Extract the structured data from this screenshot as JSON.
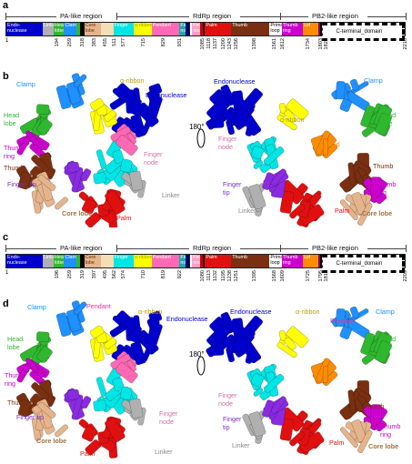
{
  "panels": {
    "a": {
      "label": "a",
      "regions": [
        "PA-like region",
        "RdRp region",
        "PB2-like region"
      ],
      "segments": [
        {
          "name": "Endo-\nnuclease",
          "color": "#0000cc",
          "w": 9.0,
          "txt": "#ffffff"
        },
        {
          "name": "Linker",
          "color": "#b0b0b0",
          "w": 2.7,
          "txt": "#ffffff"
        },
        {
          "name": "Head\nlobe",
          "color": "#2fb82f",
          "w": 2.6,
          "txt": "#ffffff"
        },
        {
          "name": "Clamp",
          "color": "#1e90ff",
          "w": 3.0,
          "txt": "#ffffff"
        },
        {
          "name": "",
          "color": "#2fb82f",
          "w": 1.0,
          "txt": "#ffffff"
        },
        {
          "name": "",
          "color": "#000000",
          "w": 1.0,
          "txt": "#ffffff"
        },
        {
          "name": "Core\nlobe",
          "color": "#e6b48c",
          "w": 4.2,
          "txt": "#5a3200"
        },
        {
          "name": "",
          "color": "#f5deb3",
          "w": 3.0,
          "txt": "#000"
        },
        {
          "name": "Finger",
          "color": "#00e5e5",
          "w": 5.0,
          "txt": "#ffffff"
        },
        {
          "name": "α-ribbon",
          "color": "#ffff00",
          "w": 4.5,
          "txt": "#a0a000"
        },
        {
          "name": "Pendant",
          "color": "#ff69b4",
          "w": 6.9,
          "txt": "#ffffff"
        },
        {
          "name": "Finger\nnode",
          "color": "#20a8a8",
          "w": 1.5,
          "txt": "#ffffff"
        },
        {
          "name": "",
          "color": "#000080",
          "w": 0.9,
          "txt": "#ffffff"
        },
        {
          "name": "",
          "color": "#ffffff",
          "w": 0.5,
          "txt": "#000"
        },
        {
          "name": "Finger\nnode",
          "color": "#ff9ec8",
          "w": 2.0,
          "txt": "#ffffff"
        },
        {
          "name": "",
          "color": "#d00000",
          "w": 0.6,
          "txt": "#ffffff"
        },
        {
          "name": "",
          "color": "#000000",
          "w": 0.6,
          "txt": "#ffffff"
        },
        {
          "name": "Palm",
          "color": "#e01010",
          "w": 6.5,
          "txt": "#ffffff"
        },
        {
          "name": "Thumb",
          "color": "#7a3010",
          "w": 9.5,
          "txt": "#ffffff"
        },
        {
          "name": "Priming\nloop",
          "color": "#ffffff",
          "w": 3.0,
          "txt": "#000000"
        },
        {
          "name": "Thumb\nring",
          "color": "#cc00cc",
          "w": 5.3,
          "txt": "#ffffff"
        },
        {
          "name": "Lid",
          "color": "#ff8c00",
          "w": 3.8,
          "txt": "#ffffff"
        },
        {
          "name": "",
          "color": "#800080",
          "w": 0.5,
          "txt": "#ffffff"
        },
        {
          "name": "",
          "color": "#000000",
          "w": 0.5,
          "txt": "#ffffff"
        },
        {
          "name": "C-terminal_domain",
          "color": "#ffffff",
          "w": 19.5,
          "txt": "#000000"
        }
      ],
      "start": "1",
      "end": "2218",
      "numbers": [
        "194",
        "259",
        "318",
        "383",
        "455",
        "511",
        "577",
        "715",
        "829",
        "931",
        "1085",
        "1118",
        "1137",
        "1200",
        "1243",
        "1256",
        "1398",
        "1561",
        "1612",
        "1734",
        "1803",
        "1821"
      ]
    },
    "c": {
      "label": "c",
      "regions": [
        "PA-like region",
        "RdRp region",
        "PB2-like region"
      ],
      "start": "1",
      "end": "2209",
      "numbers": [
        "196",
        "259",
        "319",
        "397",
        "495",
        "562",
        "574",
        "710",
        "819",
        "922",
        "1080",
        "1113",
        "1132",
        "1195",
        "1238",
        "1251",
        "1395",
        "1568",
        "1609",
        "1725",
        "1795",
        "1815"
      ]
    },
    "b": {
      "label": "b",
      "rotation": "180°",
      "left_labels": [
        "Clamp",
        "Head\nlobe",
        "Thumb\nring",
        "Thumb",
        "Finger_tip",
        "Core lobe",
        "α-ribbon",
        "Endonuclease",
        "Finger\nnode",
        "Linker",
        "Palm"
      ],
      "right_labels": [
        "Endonuclease",
        "Clamp",
        "α-ribbon",
        "Head\nlobe",
        "Finger\nnode",
        "Lid",
        "Thumb",
        "Finger\ntip",
        "Thumb\nring",
        "Linker",
        "Palm",
        "Core lobe"
      ]
    },
    "d": {
      "label": "d",
      "rotation": "180°",
      "left_labels": [
        "Clamp",
        "Pendant",
        "α-ribbon",
        "Endonuclease",
        "Head\nlobe",
        "Thumb\nring",
        "Thumb",
        "Finger tip",
        "Finger\nnode",
        "Core lobe",
        "Palm",
        "Linker"
      ],
      "right_labels": [
        "Endonuclease",
        "α-ribbon",
        "Pendant",
        "Clamp",
        "Head\nlobe",
        "Finger\nnode",
        "Finger\ntip",
        "Thumb",
        "Thumb\nring",
        "Linker",
        "Palm",
        "Core lobe"
      ]
    }
  },
  "colors": {
    "endonuclease": "#0000cc",
    "clamp": "#1e90ff",
    "head_lobe": "#2fb82f",
    "thumb_ring": "#cc00cc",
    "thumb": "#7a3010",
    "finger": "#00e5e5",
    "core_lobe": "#e6b48c",
    "alpha_ribbon": "#ffff00",
    "palm": "#e01010",
    "linker": "#b0b0b0",
    "pendant": "#ff69b4",
    "lid": "#ff8c00",
    "finger_tip": "#8a2be2"
  }
}
